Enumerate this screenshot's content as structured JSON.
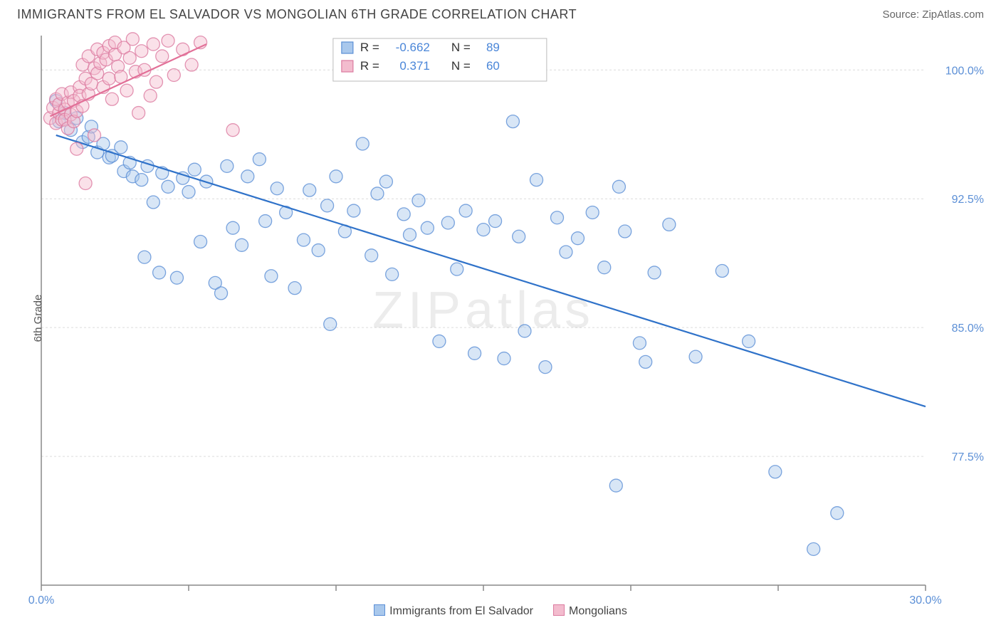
{
  "title": "IMMIGRANTS FROM EL SALVADOR VS MONGOLIAN 6TH GRADE CORRELATION CHART",
  "source": "Source: ZipAtlas.com",
  "ylabel": "6th Grade",
  "watermark": "ZIPatlas",
  "chart": {
    "type": "scatter",
    "background_color": "#ffffff",
    "grid_color": "#dcdcdc",
    "axis_color": "#888888",
    "xlim": [
      0,
      30
    ],
    "ylim": [
      70,
      102
    ],
    "xticks": [
      0,
      5,
      10,
      15,
      20,
      25,
      30
    ],
    "xtick_labels": {
      "0": "0.0%",
      "30": "30.0%"
    },
    "yticks": [
      77.5,
      85.0,
      92.5,
      100.0
    ],
    "ytick_labels": [
      "77.5%",
      "85.0%",
      "92.5%",
      "100.0%"
    ],
    "marker_radius": 9,
    "marker_opacity": 0.45,
    "line_width": 2.2,
    "series": [
      {
        "name": "Immigrants from El Salvador",
        "color_fill": "#a9c8ec",
        "color_stroke": "#5b8fd6",
        "line_color": "#2f72c9",
        "R": "-0.662",
        "N": "89",
        "trend": {
          "x1": 0.5,
          "y1": 96.2,
          "x2": 30,
          "y2": 80.4
        },
        "points": [
          [
            0.5,
            98.2
          ],
          [
            0.6,
            97.0
          ],
          [
            0.8,
            97.5
          ],
          [
            1.0,
            96.5
          ],
          [
            1.2,
            97.2
          ],
          [
            1.4,
            95.8
          ],
          [
            1.6,
            96.1
          ],
          [
            1.7,
            96.7
          ],
          [
            1.9,
            95.2
          ],
          [
            2.1,
            95.7
          ],
          [
            2.3,
            94.9
          ],
          [
            2.4,
            95.0
          ],
          [
            2.7,
            95.5
          ],
          [
            2.8,
            94.1
          ],
          [
            3.0,
            94.6
          ],
          [
            3.1,
            93.8
          ],
          [
            3.4,
            93.6
          ],
          [
            3.5,
            89.1
          ],
          [
            3.6,
            94.4
          ],
          [
            3.8,
            92.3
          ],
          [
            4.0,
            88.2
          ],
          [
            4.1,
            94.0
          ],
          [
            4.3,
            93.2
          ],
          [
            4.6,
            87.9
          ],
          [
            4.8,
            93.7
          ],
          [
            5.0,
            92.9
          ],
          [
            5.2,
            94.2
          ],
          [
            5.4,
            90.0
          ],
          [
            5.6,
            93.5
          ],
          [
            5.9,
            87.6
          ],
          [
            6.1,
            87.0
          ],
          [
            6.3,
            94.4
          ],
          [
            6.5,
            90.8
          ],
          [
            6.8,
            89.8
          ],
          [
            7.0,
            93.8
          ],
          [
            7.4,
            94.8
          ],
          [
            7.6,
            91.2
          ],
          [
            7.8,
            88.0
          ],
          [
            8.0,
            93.1
          ],
          [
            8.3,
            91.7
          ],
          [
            8.6,
            87.3
          ],
          [
            8.9,
            90.1
          ],
          [
            9.1,
            93.0
          ],
          [
            9.4,
            89.5
          ],
          [
            9.7,
            92.1
          ],
          [
            9.8,
            85.2
          ],
          [
            10.0,
            93.8
          ],
          [
            10.3,
            90.6
          ],
          [
            10.6,
            91.8
          ],
          [
            10.9,
            95.7
          ],
          [
            11.2,
            89.2
          ],
          [
            11.4,
            92.8
          ],
          [
            11.7,
            93.5
          ],
          [
            11.9,
            88.1
          ],
          [
            12.3,
            91.6
          ],
          [
            12.5,
            90.4
          ],
          [
            12.8,
            92.4
          ],
          [
            13.1,
            90.8
          ],
          [
            13.5,
            84.2
          ],
          [
            13.8,
            91.1
          ],
          [
            14.1,
            88.4
          ],
          [
            14.4,
            91.8
          ],
          [
            14.7,
            83.5
          ],
          [
            15.0,
            90.7
          ],
          [
            15.4,
            91.2
          ],
          [
            15.7,
            83.2
          ],
          [
            16.0,
            97.0
          ],
          [
            16.2,
            90.3
          ],
          [
            16.4,
            84.8
          ],
          [
            16.8,
            93.6
          ],
          [
            17.1,
            82.7
          ],
          [
            17.5,
            91.4
          ],
          [
            17.8,
            89.4
          ],
          [
            18.2,
            90.2
          ],
          [
            18.7,
            91.7
          ],
          [
            19.1,
            88.5
          ],
          [
            19.5,
            75.8
          ],
          [
            19.6,
            93.2
          ],
          [
            19.8,
            90.6
          ],
          [
            20.3,
            84.1
          ],
          [
            20.5,
            83.0
          ],
          [
            20.8,
            88.2
          ],
          [
            21.3,
            91.0
          ],
          [
            22.2,
            83.3
          ],
          [
            23.1,
            88.3
          ],
          [
            24.0,
            84.2
          ],
          [
            24.9,
            76.6
          ],
          [
            26.2,
            72.1
          ],
          [
            27.0,
            74.2
          ]
        ]
      },
      {
        "name": "Mongolians",
        "color_fill": "#f3bcce",
        "color_stroke": "#dc7ba0",
        "line_color": "#e26f97",
        "R": "0.371",
        "N": "60",
        "trend": {
          "x1": 0.3,
          "y1": 97.3,
          "x2": 5.6,
          "y2": 101.5
        },
        "points": [
          [
            0.3,
            97.2
          ],
          [
            0.4,
            97.8
          ],
          [
            0.5,
            98.3
          ],
          [
            0.5,
            96.9
          ],
          [
            0.6,
            97.5
          ],
          [
            0.6,
            98.0
          ],
          [
            0.7,
            98.6
          ],
          [
            0.7,
            97.1
          ],
          [
            0.8,
            97.7
          ],
          [
            0.8,
            97.1
          ],
          [
            0.9,
            98.1
          ],
          [
            0.9,
            96.6
          ],
          [
            1.0,
            97.4
          ],
          [
            1.0,
            98.7
          ],
          [
            1.1,
            97.0
          ],
          [
            1.1,
            98.2
          ],
          [
            1.2,
            95.4
          ],
          [
            1.2,
            97.6
          ],
          [
            1.3,
            99.0
          ],
          [
            1.3,
            98.5
          ],
          [
            1.4,
            97.9
          ],
          [
            1.4,
            100.3
          ],
          [
            1.5,
            99.5
          ],
          [
            1.5,
            93.4
          ],
          [
            1.6,
            98.6
          ],
          [
            1.6,
            100.8
          ],
          [
            1.7,
            99.2
          ],
          [
            1.8,
            100.1
          ],
          [
            1.8,
            96.2
          ],
          [
            1.9,
            99.8
          ],
          [
            1.9,
            101.2
          ],
          [
            2.0,
            100.4
          ],
          [
            2.1,
            99.0
          ],
          [
            2.1,
            101.0
          ],
          [
            2.2,
            100.6
          ],
          [
            2.3,
            99.5
          ],
          [
            2.3,
            101.4
          ],
          [
            2.4,
            98.3
          ],
          [
            2.5,
            100.9
          ],
          [
            2.5,
            101.6
          ],
          [
            2.6,
            100.2
          ],
          [
            2.7,
            99.6
          ],
          [
            2.8,
            101.3
          ],
          [
            2.9,
            98.8
          ],
          [
            3.0,
            100.7
          ],
          [
            3.1,
            101.8
          ],
          [
            3.2,
            99.9
          ],
          [
            3.3,
            97.5
          ],
          [
            3.4,
            101.1
          ],
          [
            3.5,
            100.0
          ],
          [
            3.7,
            98.5
          ],
          [
            3.8,
            101.5
          ],
          [
            3.9,
            99.3
          ],
          [
            4.1,
            100.8
          ],
          [
            4.3,
            101.7
          ],
          [
            4.5,
            99.7
          ],
          [
            4.8,
            101.2
          ],
          [
            5.1,
            100.3
          ],
          [
            5.4,
            101.6
          ],
          [
            6.5,
            96.5
          ]
        ]
      }
    ]
  },
  "bottom_legend": [
    {
      "label": "Immigrants from El Salvador",
      "fill": "#a9c8ec",
      "stroke": "#5b8fd6"
    },
    {
      "label": "Mongolians",
      "fill": "#f3bcce",
      "stroke": "#dc7ba0"
    }
  ]
}
